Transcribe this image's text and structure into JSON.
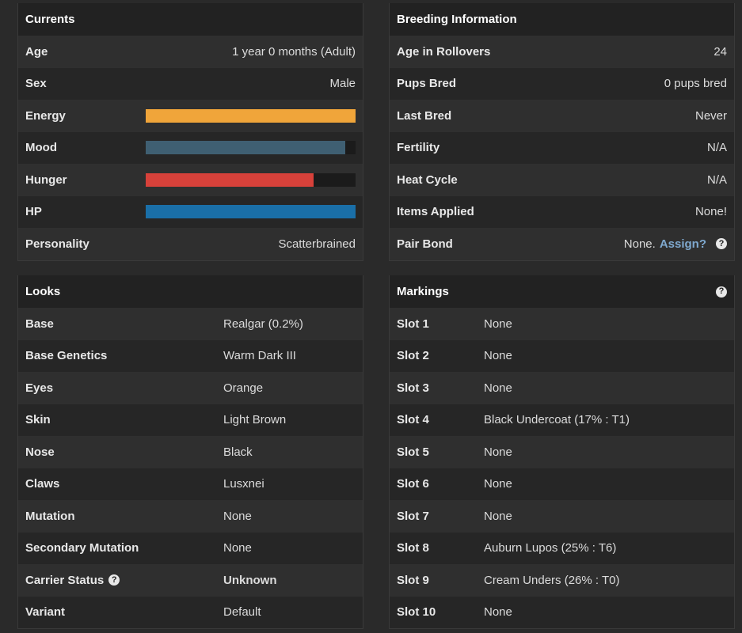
{
  "currents": {
    "title": "Currents",
    "age": {
      "label": "Age",
      "value": "1 year 0 months (Adult)"
    },
    "sex": {
      "label": "Sex",
      "value": "Male"
    },
    "energy": {
      "label": "Energy",
      "level": 100,
      "color": "#f0a53a"
    },
    "mood": {
      "label": "Mood",
      "level": 95,
      "color": "#3f5f72"
    },
    "hunger": {
      "label": "Hunger",
      "level": 80,
      "color": "#d7413a"
    },
    "hp": {
      "label": "HP",
      "level": 100,
      "color": "#1a6fa8"
    },
    "personality": {
      "label": "Personality",
      "value": "Scatterbrained"
    }
  },
  "breeding": {
    "title": "Breeding Information",
    "age_rollovers": {
      "label": "Age in Rollovers",
      "value": "24"
    },
    "pups_bred": {
      "label": "Pups Bred",
      "value": "0 pups bred"
    },
    "last_bred": {
      "label": "Last Bred",
      "value": "Never"
    },
    "fertility": {
      "label": "Fertility",
      "value": "N/A"
    },
    "heat_cycle": {
      "label": "Heat Cycle",
      "value": "N/A"
    },
    "items_applied": {
      "label": "Items Applied",
      "value": "None!"
    },
    "pair_bond": {
      "label": "Pair Bond",
      "value": "None.",
      "link": "Assign?",
      "help": "?"
    }
  },
  "looks": {
    "title": "Looks",
    "rows": [
      {
        "label": "Base",
        "value": "Realgar (0.2%)"
      },
      {
        "label": "Base Genetics",
        "value": "Warm Dark III"
      },
      {
        "label": "Eyes",
        "value": "Orange"
      },
      {
        "label": "Skin",
        "value": "Light Brown"
      },
      {
        "label": "Nose",
        "value": "Black"
      },
      {
        "label": "Claws",
        "value": "Lusxnei"
      },
      {
        "label": "Mutation",
        "value": "None"
      },
      {
        "label": "Secondary Mutation",
        "value": "None"
      }
    ],
    "carrier": {
      "label": "Carrier Status",
      "help": "?",
      "value": "Unknown"
    },
    "variant": {
      "label": "Variant",
      "value": "Default"
    }
  },
  "markings": {
    "title": "Markings",
    "help": "?",
    "rows": [
      {
        "label": "Slot 1",
        "value": "None"
      },
      {
        "label": "Slot 2",
        "value": "None"
      },
      {
        "label": "Slot 3",
        "value": "None"
      },
      {
        "label": "Slot 4",
        "value": "Black Undercoat (17% : T1)"
      },
      {
        "label": "Slot 5",
        "value": "None"
      },
      {
        "label": "Slot 6",
        "value": "None"
      },
      {
        "label": "Slot 7",
        "value": "None"
      },
      {
        "label": "Slot 8",
        "value": "Auburn Lupos (25% : T6)"
      },
      {
        "label": "Slot 9",
        "value": "Cream Unders (26% : T0)"
      },
      {
        "label": "Slot 10",
        "value": "None"
      }
    ]
  }
}
